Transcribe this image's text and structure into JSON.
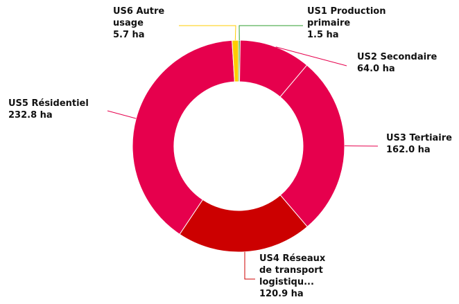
{
  "chart_data": {
    "type": "donut",
    "categories": [
      "US1 Production primaire",
      "US2 Secondaire",
      "US3 Tertiaire",
      "US4 Réseaux de transport logistiqu...",
      "US5 Résidentiel",
      "US6 Autre usage"
    ],
    "values": [
      1.5,
      64.0,
      162.0,
      120.9,
      232.8,
      5.7
    ],
    "value_labels": [
      "1.5 ha",
      "64.0 ha",
      "162.0 ha",
      "120.9 ha",
      "232.8 ha",
      "5.7 ha"
    ],
    "colors": [
      "#2e9e2e",
      "#e6004d",
      "#e6004d",
      "#cc0000",
      "#e6004d",
      "#ffcc00"
    ]
  }
}
